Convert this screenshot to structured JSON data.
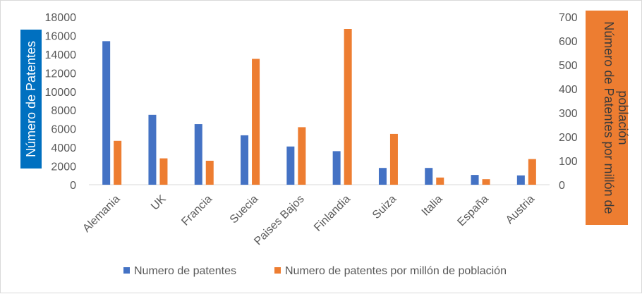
{
  "chart_data": {
    "type": "bar",
    "title": "",
    "categories": [
      "Alemania",
      "UK",
      "Francia",
      "Suecia",
      "Paises Bajos",
      "Finlandia",
      "Suiza",
      "Italia",
      "España",
      "Austria"
    ],
    "series": [
      {
        "name": "Numero de patentes",
        "axis": "left",
        "color": "#4472c4",
        "values": [
          15400,
          7500,
          6500,
          5300,
          4100,
          3600,
          1800,
          1800,
          1050,
          1000
        ]
      },
      {
        "name": "Numero de patentes por millón de población",
        "axis": "right",
        "color": "#ed7d31",
        "values": [
          183,
          110,
          100,
          525,
          240,
          650,
          212,
          30,
          23,
          107
        ]
      }
    ],
    "ylabel": "Número de Patentes",
    "ylabel_right": "Número de Patentes por millón de población",
    "ylim": [
      0,
      18000
    ],
    "yticks": [
      0,
      2000,
      4000,
      6000,
      8000,
      10000,
      12000,
      14000,
      16000,
      18000
    ],
    "ytick_labels": [
      "0",
      "2000",
      "4000",
      "6000",
      "8000",
      "10000",
      "12000",
      "14000",
      "16000",
      "18000"
    ],
    "ylim_right": [
      0,
      700
    ],
    "yticks_right": [
      0,
      100,
      200,
      300,
      400,
      500,
      600,
      700
    ],
    "ytick_labels_right": [
      "0",
      "100",
      "200",
      "300",
      "400",
      "500",
      "600",
      "700"
    ],
    "grid": false,
    "legend_position": "bottom",
    "ylabel_bg": "#0070c0",
    "ylabel_right_bg": "#ed7d31"
  }
}
